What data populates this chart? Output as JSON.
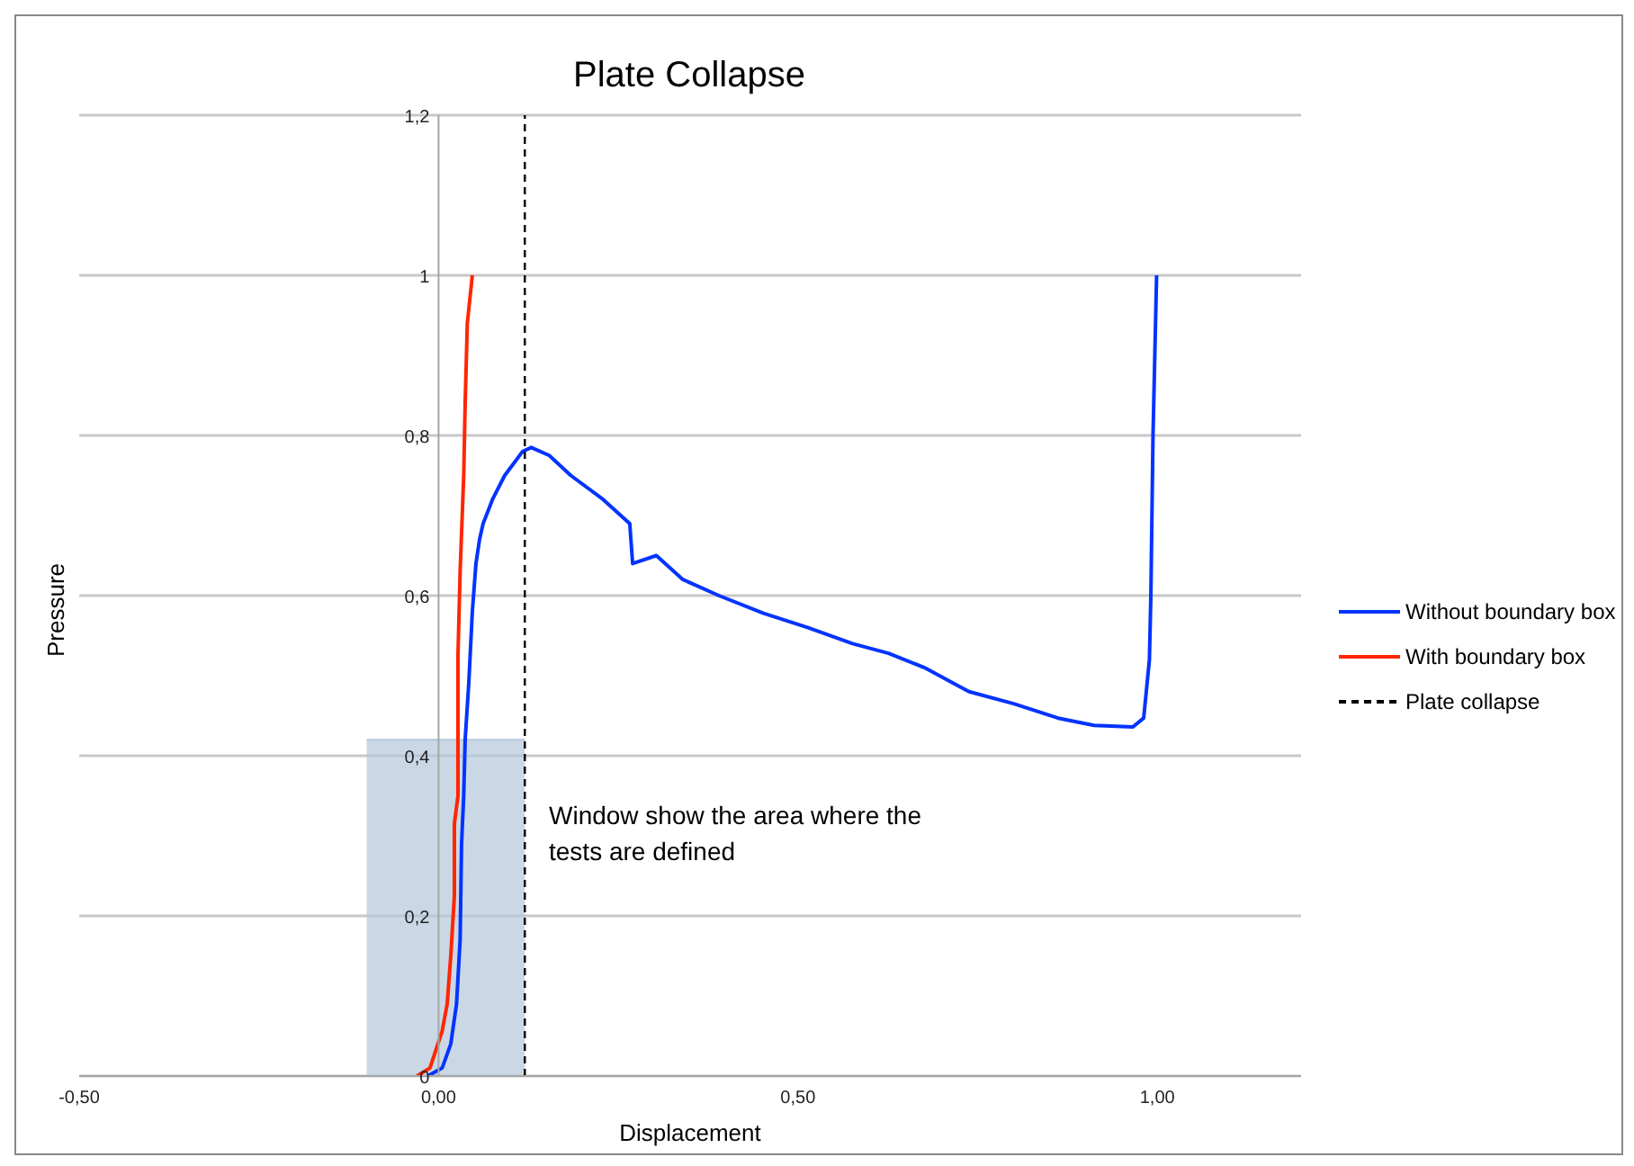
{
  "chart_data": {
    "type": "line",
    "title": "Plate Collapse",
    "xlabel": "Displacement",
    "ylabel": "Pressure",
    "xlim": [
      -0.5,
      1.2
    ],
    "ylim": [
      0,
      1.2
    ],
    "xticks": [
      {
        "value": -0.5,
        "label": "-0,50"
      },
      {
        "value": 0,
        "label": "0,00"
      },
      {
        "value": 0.5,
        "label": "0,50"
      },
      {
        "value": 1,
        "label": "1,00"
      }
    ],
    "yticks": [
      0,
      {
        "value": 0.2,
        "label": "0,2"
      },
      {
        "value": 0.4,
        "label": "0,4"
      },
      {
        "value": 0.6,
        "label": "0,6"
      },
      {
        "value": 0.8,
        "label": "0,8"
      },
      1,
      {
        "value": 1.2,
        "label": "1,2"
      }
    ],
    "grid": "y",
    "legend": "right",
    "marker": "none",
    "line_style": "solid",
    "series": [
      {
        "type": "area",
        "color": "#b4c7dc",
        "x": [
          -0.1,
          0.12
        ],
        "values": [
          0.42,
          0.42
        ]
      },
      {
        "name": "Without boundary box",
        "color": "#0433ff",
        "x": [
          -0.015,
          0.005,
          0.017,
          0.025,
          0.03,
          0.032,
          0.035,
          0.037,
          0.042,
          0.047,
          0.052,
          0.057,
          0.062,
          0.075,
          0.092,
          0.117,
          0.129,
          0.154,
          0.184,
          0.229,
          0.266,
          0.27,
          0.303,
          0.34,
          0.39,
          0.452,
          0.514,
          0.576,
          0.626,
          0.676,
          0.738,
          0.8,
          0.862,
          0.912,
          0.966,
          0.981,
          0.989,
          0.991,
          0.994,
          0.999
        ],
        "values": [
          0,
          0.01,
          0.04,
          0.09,
          0.17,
          0.29,
          0.35,
          0.42,
          0.49,
          0.58,
          0.64,
          0.67,
          0.69,
          0.72,
          0.75,
          0.78,
          0.785,
          0.775,
          0.75,
          0.72,
          0.69,
          0.64,
          0.65,
          0.62,
          0.6,
          0.578,
          0.56,
          0.54,
          0.528,
          0.51,
          0.48,
          0.465,
          0.447,
          0.438,
          0.436,
          0.447,
          0.52,
          0.6,
          0.8,
          1
        ]
      },
      {
        "name": "With boundary box",
        "color": "#ff2600",
        "x": [
          -0.03,
          -0.012,
          0.005,
          0.012,
          0.017,
          0.022,
          0.022,
          0.027,
          0.027,
          0.027,
          0.03,
          0.035,
          0.037,
          0.04,
          0.047
        ],
        "values": [
          0,
          0.01,
          0.056,
          0.09,
          0.15,
          0.225,
          0.315,
          0.35,
          0.41,
          0.525,
          0.63,
          0.75,
          0.84,
          0.94,
          1
        ]
      },
      {
        "name": "Plate collapse",
        "color": "#000000",
        "line_style": "dashed",
        "x": [
          0.12,
          0.12
        ],
        "values": [
          0,
          1.2
        ]
      }
    ],
    "annotations": [
      "Window show the area where the tests are defined"
    ]
  }
}
